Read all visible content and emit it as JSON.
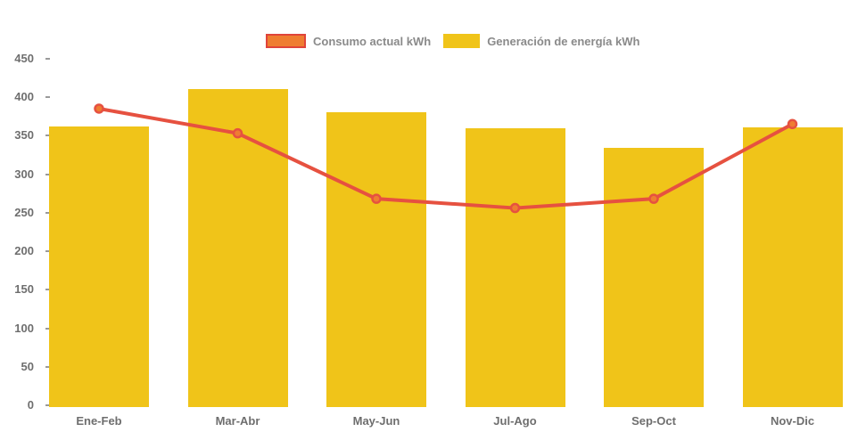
{
  "chart_data": {
    "type": "combo",
    "title": "",
    "categories": [
      "Ene-Feb",
      "Mar-Abr",
      "May-Jun",
      "Jul-Ago",
      "Sep-Oct",
      "Nov-Dic"
    ],
    "series": [
      {
        "name": "Consumo actual kWh",
        "type": "line",
        "values": [
          385,
          353,
          268,
          256,
          268,
          365
        ],
        "line_color": "#e65140",
        "marker_fill": "#ef7d31",
        "marker_stroke": "#e0443a"
      },
      {
        "name": "Generación de energía kWh",
        "type": "bar",
        "values": [
          362,
          410,
          380,
          359,
          334,
          361
        ],
        "bar_color": "#f0c419"
      }
    ],
    "xlabel": "",
    "ylabel": "",
    "ylim": [
      0,
      450
    ],
    "ytick_step": 50,
    "yticks": [
      0,
      50,
      100,
      150,
      200,
      250,
      300,
      350,
      400,
      450
    ],
    "grid": false,
    "legend_position": "top"
  },
  "legend": {
    "consumo_label": "Consumo actual kWh",
    "generacion_label": "Generación de energía kWh"
  },
  "colors": {
    "bar_yellow": "#f0c419",
    "line_red": "#e65140",
    "marker_orange": "#ef7d31",
    "legend_swatch_border": "#e0443a",
    "axis_text_gray": "#6e6e6e",
    "legend_text_gray": "#8a8a8a"
  }
}
